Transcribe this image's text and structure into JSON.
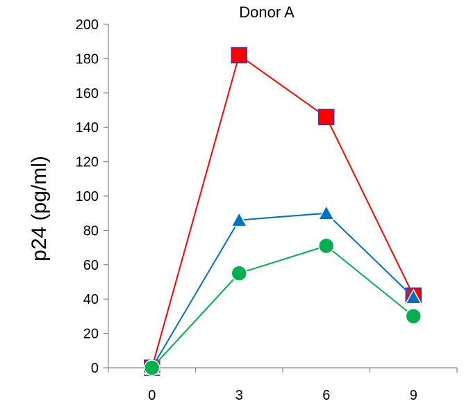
{
  "chart_data": {
    "type": "line",
    "title": "Donor A",
    "ylabel": "p24 (pg/ml)",
    "xlabel": "",
    "x": [
      0,
      3,
      6,
      9
    ],
    "ylim": [
      0,
      200
    ],
    "yticks": [
      0,
      20,
      40,
      60,
      80,
      100,
      120,
      140,
      160,
      180,
      200
    ],
    "xticks": [
      "0",
      "3",
      "6",
      "9"
    ],
    "grid": false,
    "legend": "none",
    "series": [
      {
        "marker": "square",
        "color": "#ff0000",
        "marker_fill": "#ff0000",
        "marker_edge": "#3a3aa8",
        "values": [
          0,
          182,
          146,
          42
        ]
      },
      {
        "marker": "triangle",
        "color": "#0070c0",
        "marker_fill": "#0070c0",
        "marker_edge": "#ffffff",
        "values": [
          0,
          86,
          90,
          41
        ]
      },
      {
        "marker": "circle",
        "color": "#00b050",
        "marker_fill": "#00b050",
        "marker_edge": "#ffffff",
        "values": [
          0,
          55,
          71,
          30
        ]
      }
    ]
  }
}
